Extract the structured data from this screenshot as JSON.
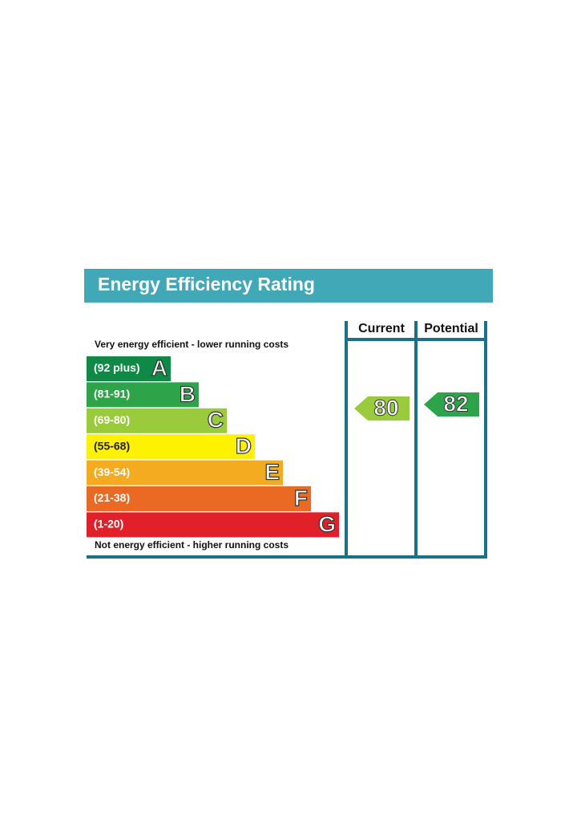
{
  "header": {
    "title": "Energy Efficiency Rating"
  },
  "columns": [
    "Current",
    "Potential"
  ],
  "top_note": "Very energy efficient - lower running costs",
  "bottom_note": "Not energy efficient - higher running costs",
  "bands": [
    {
      "range": "(92 plus)",
      "letter": "A",
      "color": "#0f8a46"
    },
    {
      "range": "(81-91)",
      "letter": "B",
      "color": "#2ea44a"
    },
    {
      "range": "(69-80)",
      "letter": "C",
      "color": "#9acb3c"
    },
    {
      "range": "(55-68)",
      "letter": "D",
      "color": "#fff200"
    },
    {
      "range": "(39-54)",
      "letter": "E",
      "color": "#f5ab20"
    },
    {
      "range": "(21-38)",
      "letter": "F",
      "color": "#ea6a23"
    },
    {
      "range": "(1-20)",
      "letter": "G",
      "color": "#e2202a"
    }
  ],
  "ratings": [
    {
      "value": 80,
      "color": "#9acb3c"
    },
    {
      "value": 82,
      "color": "#2ea44a"
    }
  ]
}
